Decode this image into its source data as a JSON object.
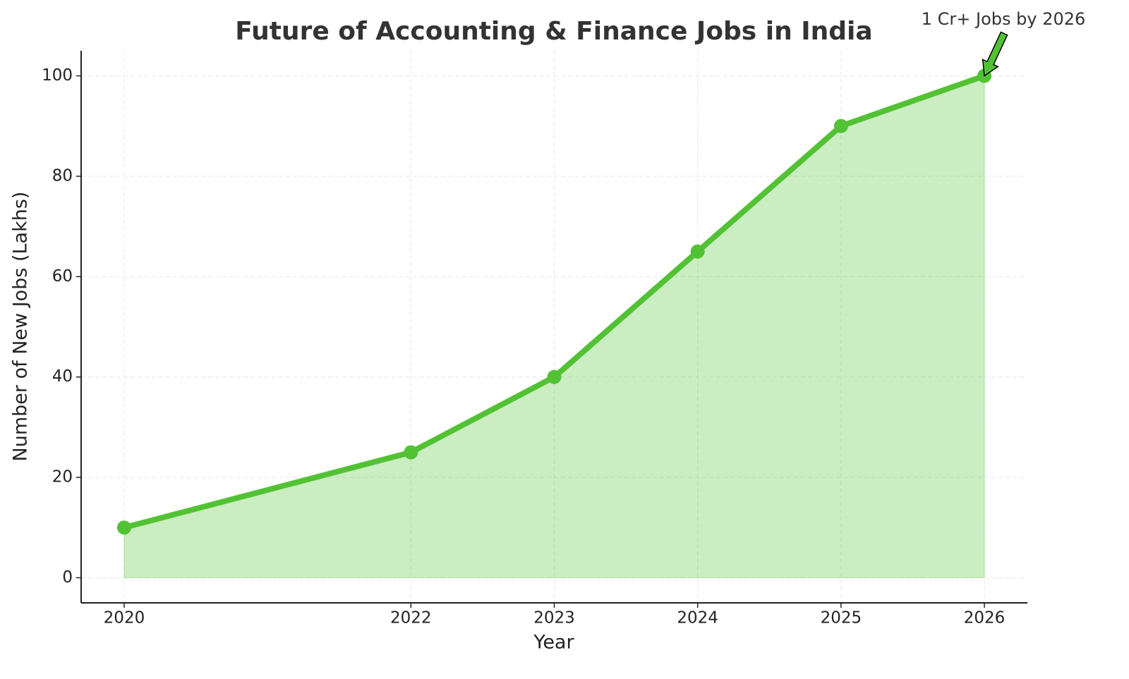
{
  "chart_data": {
    "type": "line",
    "title": "Future of Accounting & Finance Jobs in India",
    "x_label": "Year",
    "y_label": "Number of New Jobs (Lakhs)",
    "x": [
      2020,
      2022,
      2023,
      2024,
      2025,
      2026
    ],
    "series": [
      {
        "name": "New Jobs",
        "color": "#52c234",
        "values": [
          10,
          25,
          40,
          65,
          90,
          100
        ]
      }
    ],
    "fill": true,
    "xlim": [
      2019.7,
      2026.3
    ],
    "ylim": [
      -5,
      105
    ],
    "xticks": [
      2020,
      2022,
      2023,
      2024,
      2025,
      2026
    ],
    "yticks": [
      0,
      20,
      40,
      60,
      80,
      100
    ],
    "grid": true,
    "annotation": {
      "text": "1 Cr+ Jobs by 2026",
      "xy": [
        2026,
        100
      ]
    }
  }
}
